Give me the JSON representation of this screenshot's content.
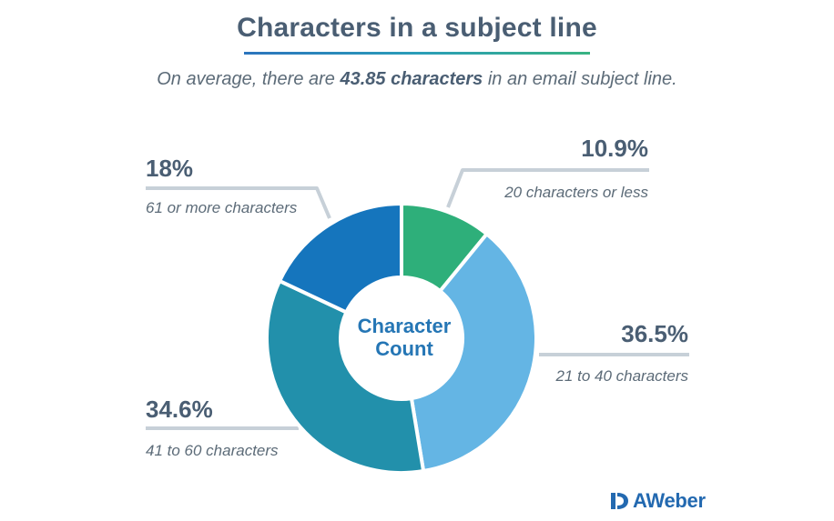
{
  "header": {
    "title": "Characters in a subject line",
    "subtitle_prefix": "On average, there are ",
    "subtitle_bold": "43.85 characters",
    "subtitle_suffix": " in an email subject line."
  },
  "center": {
    "line1": "Character",
    "line2": "Count"
  },
  "brand": {
    "name": "AWeber"
  },
  "colors": {
    "accent": "#2576b5",
    "title": "#4a5e73",
    "leader": "#c7d0d8"
  },
  "chart_data": {
    "type": "pie",
    "donut": true,
    "title": "Characters in a subject line",
    "slices": [
      {
        "label": "20 characters or less",
        "value": 10.9,
        "value_label": "10.9%",
        "color": "#2eaf7a"
      },
      {
        "label": "21 to 40 characters",
        "value": 36.5,
        "value_label": "36.5%",
        "color": "#64b5e4"
      },
      {
        "label": "41 to 60 characters",
        "value": 34.6,
        "value_label": "34.6%",
        "color": "#2290ab"
      },
      {
        "label": "61 or more characters",
        "value": 18,
        "value_label": "18%",
        "color": "#1575bd"
      }
    ]
  }
}
